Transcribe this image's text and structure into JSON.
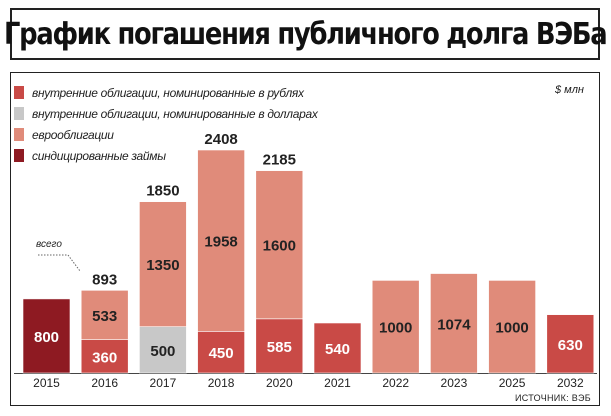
{
  "title": "График погашения публичного долга ВЭБа",
  "unit": "$ млн",
  "source": "ИСТОЧНИК: ВЭБ",
  "note": "всего",
  "colors": {
    "rub": "#c94a46",
    "usd": "#c8c8c8",
    "euro": "#e08b7a",
    "synd": "#8e1a22"
  },
  "legend": [
    {
      "key": "rub",
      "label": "внутренние облигации, номинированные в рублях",
      "color": "#c94a46"
    },
    {
      "key": "usd",
      "label": "внутренние облигации, номинированные в долларах",
      "color": "#c8c8c8"
    },
    {
      "key": "euro",
      "label": "еврооблигации",
      "color": "#e08b7a"
    },
    {
      "key": "synd",
      "label": "синдицированные займы",
      "color": "#8e1a22"
    }
  ],
  "chart_data": {
    "type": "bar",
    "stacked": true,
    "categories": [
      "2015",
      "2016",
      "2017",
      "2018",
      "2020",
      "2021",
      "2022",
      "2023",
      "2025",
      "2032"
    ],
    "series": [
      {
        "name": "синдицированные займы",
        "key": "synd",
        "values": [
          800,
          0,
          0,
          0,
          0,
          0,
          0,
          0,
          0,
          0
        ]
      },
      {
        "name": "внутренние облигации, номинированные в рублях",
        "key": "rub",
        "values": [
          0,
          360,
          0,
          450,
          585,
          540,
          0,
          0,
          0,
          630
        ]
      },
      {
        "name": "внутренние облигации, номинированные в долларах",
        "key": "usd",
        "values": [
          0,
          0,
          500,
          0,
          0,
          0,
          0,
          0,
          0,
          0
        ]
      },
      {
        "name": "еврооблигации",
        "key": "euro",
        "values": [
          0,
          533,
          1350,
          1958,
          1600,
          0,
          1000,
          1074,
          1000,
          0
        ]
      }
    ],
    "totals": {
      "1": "893",
      "2": "1850",
      "3": "2408",
      "4": "2185"
    },
    "ylim": [
      0,
      2408
    ]
  }
}
